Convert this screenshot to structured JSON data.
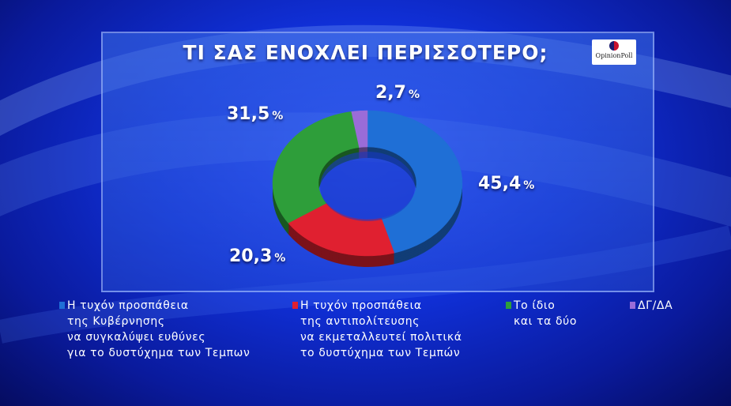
{
  "title": "ΤΙ ΣΑΣ ΕΝΟΧΛΕΙ ΠΕΡΙΣΣΟΤΕΡΟ;",
  "logo_text": "OpinionPoll",
  "colors": {
    "blue": "#1f6fd6",
    "red": "#e02030",
    "green": "#2e9e3a",
    "purple": "#9a6cd8"
  },
  "chart_data": {
    "type": "pie",
    "title": "ΤΙ ΣΑΣ ΕΝΟΧΛΕΙ ΠΕΡΙΣΣΟΤΕΡΟ;",
    "unit": "%",
    "slices": [
      {
        "value": 45.4,
        "label": "45,4",
        "color": "#1f6fd6",
        "legend": [
          "Η τυχόν προσπάθεια",
          "της Κυβέρνησης",
          "να συγκαλύψει ευθύνες",
          "για το δυστύχημα των Τεμπων"
        ]
      },
      {
        "value": 20.3,
        "label": "20,3",
        "color": "#e02030",
        "legend": [
          "Η τυχόν προσπάθεια",
          "της αντιπολίτευσης",
          "να εκμεταλλευτεί πολιτικά",
          "το δυστύχημα των Τεμπών"
        ]
      },
      {
        "value": 31.5,
        "label": "31,5",
        "color": "#2e9e3a",
        "legend": [
          "Το ίδιο",
          "και τα δύο"
        ]
      },
      {
        "value": 2.7,
        "label": "2,7",
        "color": "#9a6cd8",
        "legend": [
          "ΔΓ/ΔΑ"
        ]
      }
    ],
    "legend_position": "bottom"
  }
}
